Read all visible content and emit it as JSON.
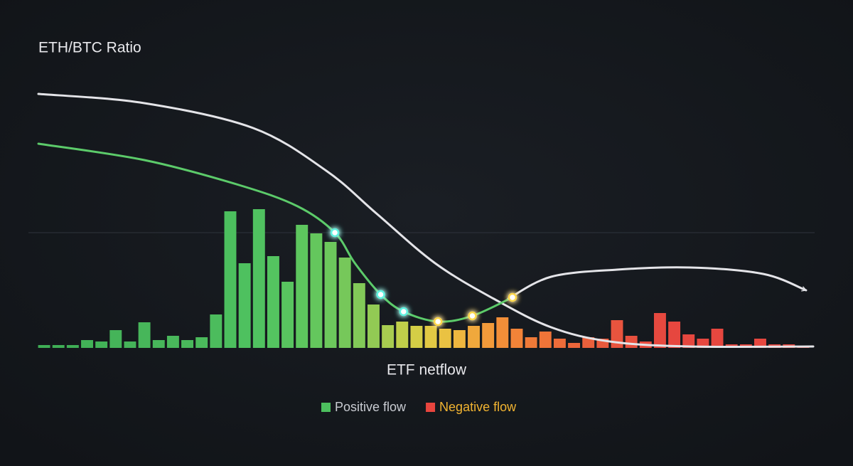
{
  "chart_data": {
    "type": "bar",
    "y_label": "ETH/BTC Ratio",
    "x_label": "ETF netflow",
    "xlim": [
      -0.5,
      53.5
    ],
    "ylim": [
      0,
      200
    ],
    "reference_line": 81,
    "values": [
      2,
      2,
      2,
      5.5,
      4.5,
      12.5,
      4.5,
      18,
      5.5,
      8.5,
      5.5,
      7.5,
      23.5,
      96,
      59.5,
      97.5,
      64.5,
      46.5,
      86.5,
      80.5,
      74.5,
      63.5,
      45.5,
      30.5,
      16,
      18.5,
      15.5,
      15.5,
      13.5,
      12.5,
      15.5,
      17.5,
      21.5,
      13.5,
      7.5,
      11.5,
      6.5,
      3.5,
      7.5,
      6.5,
      19.5,
      8.5,
      4.5,
      24.5,
      18.5,
      9.5,
      6.5,
      13.5,
      2.5,
      2.5,
      6.5,
      2.5,
      2.5,
      1.5
    ],
    "colors": [
      "#3fae55",
      "#3fae55",
      "#3fae55",
      "#42b257",
      "#42b257",
      "#45b459",
      "#45b459",
      "#47b65a",
      "#47b65a",
      "#49b85b",
      "#49b85b",
      "#4bba5c",
      "#4cbc5d",
      "#4cbf5e",
      "#4ec15f",
      "#50c260",
      "#54c460",
      "#58c45f",
      "#5dc65e",
      "#64c75d",
      "#6cc85c",
      "#76c85a",
      "#82c958",
      "#92ca54",
      "#a8cc50",
      "#c0cf4a",
      "#d4ce46",
      "#e2c944",
      "#eac242",
      "#eeb63f",
      "#f0a83c",
      "#f29a3a",
      "#f28e38",
      "#f28338",
      "#f07a38",
      "#f07438",
      "#ee6c3a",
      "#ec663b",
      "#ea603c",
      "#ea5a3d",
      "#e8543e",
      "#e8503e",
      "#e84c3f",
      "#e6493f",
      "#e6473f",
      "#e6473f",
      "#e6473f",
      "#e6473f",
      "#e6473f",
      "#e6473f",
      "#e6473f",
      "#e6473f",
      "#e6473f",
      "#e6473f"
    ],
    "lines": [
      {
        "color": "#e4e4e8",
        "x": [
          -0.4,
          7,
          14.6,
          19.7,
          23.2,
          27.3,
          31.4,
          35.4,
          39.5,
          45.1,
          53.7
        ],
        "values": [
          178.5,
          172,
          154.5,
          124.5,
          94.5,
          59.5,
          34.5,
          14.5,
          4.5,
          1,
          1
        ]
      },
      {
        "color": "#e4e4e8",
        "arrow": true,
        "x": [
          32.4,
          35.4,
          40,
          45.1,
          50.2,
          53.2
        ],
        "values": [
          34.5,
          50,
          55,
          56.5,
          52,
          40.5
        ]
      },
      {
        "color": "#5ccb6a",
        "x": [
          -0.4,
          7,
          13.6,
          17.7,
          20.3,
          21.7,
          23.5,
          25.1,
          27.5,
          29.9,
          32.7
        ],
        "values": [
          143.5,
          132,
          114.5,
          99.5,
          81,
          59.5,
          37.5,
          25.5,
          18.5,
          22.5,
          35.5
        ],
        "markers": [
          {
            "index": 4,
            "color": "#5ef2e0"
          },
          {
            "index": 6,
            "color": "#5ef2e0"
          },
          {
            "index": 7,
            "color": "#5ef2e0"
          },
          {
            "index": 8,
            "color": "#ffd84a"
          },
          {
            "index": 9,
            "color": "#ffd84a"
          },
          {
            "index": 10,
            "color": "#ffd84a"
          }
        ]
      }
    ],
    "legend": [
      {
        "name": "Positive flow",
        "color": "#4cbf5e",
        "text_color": "#c9ccd2"
      },
      {
        "name": "Negative flow",
        "color": "#e8453e",
        "text_color": "#f2b431"
      }
    ]
  }
}
